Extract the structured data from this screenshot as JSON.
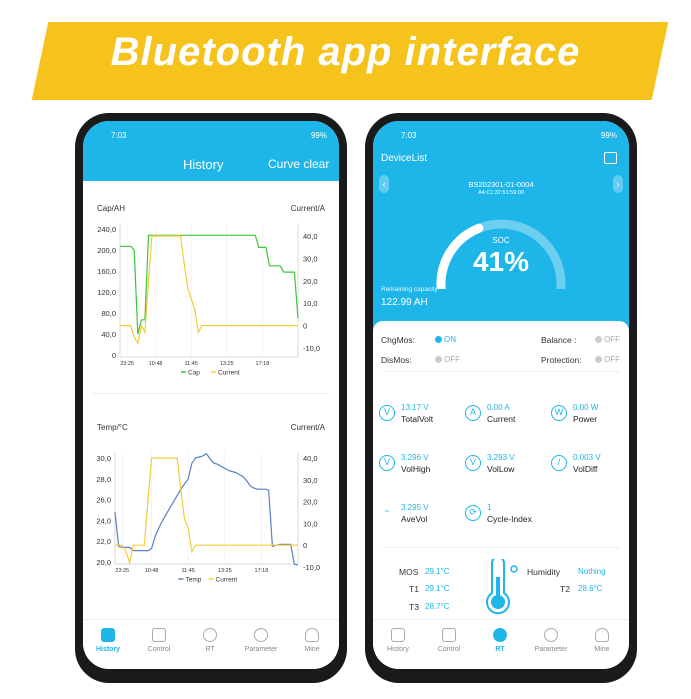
{
  "banner": {
    "title": "Bluetooth app interface",
    "color": "#f6c21c"
  },
  "status": {
    "time": "7:03",
    "battery": "99%"
  },
  "history_screen": {
    "title": "History",
    "curve_clear": "Curve clear",
    "chart1": {
      "left_label": "Cap/AH",
      "right_label": "Current/A",
      "legend": [
        "Cap",
        "Current"
      ]
    },
    "chart2": {
      "left_label": "Temp/°C",
      "right_label": "Current/A",
      "legend": [
        "Temp",
        "Current"
      ]
    }
  },
  "chart_data": [
    {
      "type": "line",
      "x_ticks": [
        "23:25",
        "10:48",
        "11:45",
        "13:25",
        "17:18"
      ],
      "x_tick_index": [
        2,
        10,
        20,
        30,
        40
      ],
      "ylim_left": [
        0,
        240
      ],
      "yticks_left": [
        "0",
        "40,0",
        "80,0",
        "120,0",
        "160,0",
        "200,0",
        "240,0"
      ],
      "ylim_right": [
        -10,
        40
      ],
      "yticks_right": [
        "-10,0",
        "0",
        "10,0",
        "20,0",
        "30,0",
        "40,0"
      ],
      "series": [
        {
          "name": "Cap",
          "axis": "left",
          "color": "#3cc43c",
          "values": [
            207,
            207,
            207,
            207,
            200,
            40,
            67,
            67,
            228,
            228,
            228,
            228,
            228,
            228,
            228,
            228,
            228,
            228,
            228,
            228,
            228,
            228,
            228,
            228,
            228,
            228,
            228,
            228,
            228,
            228,
            228,
            228,
            228,
            228,
            228,
            228,
            228,
            228,
            228,
            205,
            205,
            205,
            170,
            170,
            170,
            170,
            158,
            158,
            158,
            158,
            70
          ]
        },
        {
          "name": "Current",
          "axis": "right",
          "color": "#f2cd3a",
          "values": [
            0,
            0,
            0,
            0,
            -5,
            -8,
            0,
            -3,
            20,
            40,
            40,
            40,
            40,
            40,
            40,
            40,
            40,
            40,
            28,
            17,
            12,
            7,
            -3,
            0,
            0,
            0,
            0,
            0,
            0,
            0,
            0,
            0,
            0,
            0,
            0,
            0,
            0,
            0,
            0,
            0,
            0,
            0,
            0,
            0,
            0,
            0,
            0,
            0,
            0,
            0,
            0
          ]
        }
      ]
    },
    {
      "type": "line",
      "x_ticks": [
        "23:25",
        "10:48",
        "11:45",
        "13:25",
        "17:18"
      ],
      "x_tick_index": [
        2,
        10,
        20,
        30,
        40
      ],
      "ylim_left": [
        20,
        30
      ],
      "yticks_left": [
        "20,0",
        "22,0",
        "24,0",
        "26,0",
        "28,0",
        "30,0"
      ],
      "ylim_right": [
        -10,
        40
      ],
      "yticks_right": [
        "-10,0",
        "0",
        "10,0",
        "20,0",
        "30,0",
        "40,0"
      ],
      "series": [
        {
          "name": "Temp",
          "axis": "left",
          "color": "#5b7fc0",
          "values": [
            24.8,
            21.5,
            21.4,
            21.4,
            21.4,
            21.1,
            21.1,
            21.1,
            21.1,
            21.1,
            21.3,
            22.5,
            23.3,
            24,
            24.6,
            25.2,
            25.8,
            26.4,
            27,
            27.5,
            28,
            29.5,
            30,
            30.1,
            30.2,
            30.4,
            29.9,
            29.5,
            29.4,
            29.2,
            29,
            28.8,
            28.7,
            28.6,
            28.4,
            28.2,
            27.8,
            27.3,
            27.1,
            27,
            27,
            27,
            26.9,
            21.5,
            21.6,
            21.7,
            21.7,
            21.7,
            21.7,
            19.8,
            19.7
          ]
        },
        {
          "name": "Current",
          "axis": "right",
          "color": "#f2cd3a",
          "values": [
            0,
            0,
            0,
            -3,
            -8,
            0,
            0,
            0,
            0,
            20,
            40,
            40,
            40,
            40,
            40,
            40,
            40,
            40,
            25,
            12,
            8,
            -3,
            0,
            0,
            0,
            0,
            0,
            0,
            0,
            0,
            0,
            0,
            0,
            0,
            0,
            0,
            0,
            0,
            0,
            0,
            0,
            0,
            0,
            0,
            0,
            0,
            0,
            0,
            0,
            0,
            0
          ]
        }
      ]
    }
  ],
  "rt_screen": {
    "device_list": "DeviceList",
    "device_name": "BS202301-01-0004",
    "mac": "A4:C1:37:51:59:00",
    "soc_label": "SOC",
    "soc_value": "41%",
    "soc_fraction": 0.41,
    "remaining_label": "Remaining capacity",
    "remaining_value": "122.99 AH",
    "switches": {
      "chgmos": {
        "label": "ChgMos:",
        "state": "ON"
      },
      "dismos": {
        "label": "DisMos:",
        "state": "OFF"
      },
      "balance": {
        "label": "Balance :",
        "state": "OFF"
      },
      "protection": {
        "label": "Protection:",
        "state": "OFF"
      }
    },
    "metrics": [
      {
        "value": "13.17 V",
        "name": "TotalVolt"
      },
      {
        "value": "0.00 A",
        "name": "Current"
      },
      {
        "value": "0.00 W",
        "name": "Power"
      },
      {
        "value": "3.296 V",
        "name": "VolHigh"
      },
      {
        "value": "3.293 V",
        "name": "VolLow"
      },
      {
        "value": "0.003 V",
        "name": "VolDiff"
      },
      {
        "value": "3.295 V",
        "name": "AveVol"
      },
      {
        "value": "1",
        "name": "Cycle-Index"
      }
    ],
    "temps": {
      "mos_label": "MOS",
      "mos": "29.1°C",
      "t1_label": "T1",
      "t1": "29.1°C",
      "t3_label": "T3",
      "t3": "28.7°C",
      "humidity_label": "Humidity",
      "humidity": "Nothing",
      "t2_label": "T2",
      "t2": "28.6°C"
    }
  },
  "tabs": [
    "History",
    "Control",
    "RT",
    "Parameter",
    "Mine"
  ],
  "accent": "#1eb6e8"
}
